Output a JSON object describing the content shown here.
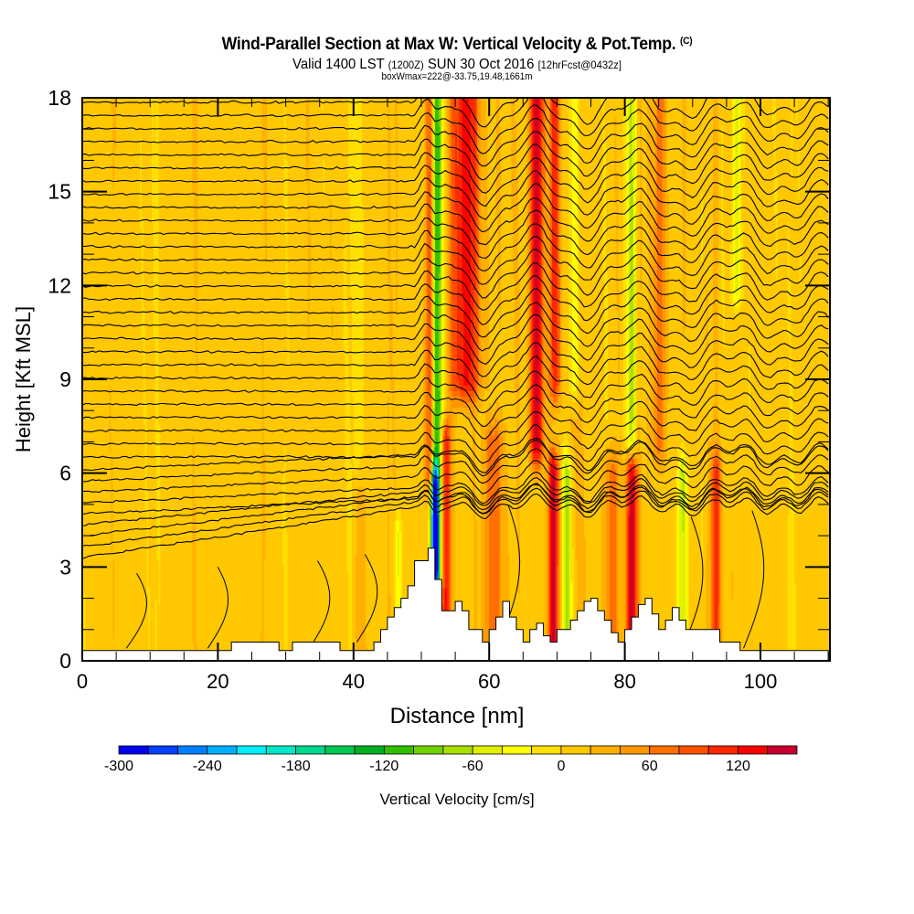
{
  "header": {
    "title": "Wind-Parallel Section at Max W: Vertical Velocity & Pot.Temp.",
    "copyright": "(C)",
    "valid_prefix": "Valid 1400 LST",
    "valid_utc": "(1200Z)",
    "valid_date": "SUN 30 Oct 2016",
    "forecast": "[12hrFcst@0432z]",
    "box_wmax": "boxWmax=222@-33.75,19.48,1661m"
  },
  "chart_data": {
    "type": "heatmap",
    "title": "Wind-Parallel Section at Max W: Vertical Velocity & Pot.Temp.",
    "xlabel": "Distance [nm]",
    "ylabel": "Height [Kft MSL]",
    "xlim": [
      0,
      110
    ],
    "ylim": [
      0,
      18
    ],
    "xticks": [
      0,
      20,
      40,
      60,
      80,
      100
    ],
    "xtick_labels": [
      "0",
      "20",
      "40",
      "60",
      "80",
      "100"
    ],
    "x_minor_step": 5,
    "yticks": [
      0,
      3,
      6,
      9,
      12,
      15,
      18
    ],
    "ytick_labels": [
      "0",
      "3",
      "6",
      "9",
      "12",
      "15",
      "18"
    ],
    "y_minor_step": 1,
    "colorbar": {
      "label": "Vertical Velocity [cm/s]",
      "placement": "bottom",
      "min": -300,
      "max": 160,
      "step": 20,
      "tick_values": [
        -300,
        -240,
        -180,
        -120,
        -60,
        0,
        60,
        120
      ],
      "tick_labels": [
        "-300",
        "-240",
        "-180",
        "-120",
        "-60",
        "0",
        "60",
        "120"
      ],
      "colors": [
        "#0000f0",
        "#0040ff",
        "#0080ff",
        "#00b0ff",
        "#00f0ff",
        "#00e8c8",
        "#00d890",
        "#00c850",
        "#00b020",
        "#30c000",
        "#70d000",
        "#a8e000",
        "#e0f000",
        "#ffff00",
        "#ffe000",
        "#ffc800",
        "#ffb000",
        "#ff9800",
        "#ff7000",
        "#ff5000",
        "#ff2800",
        "#ff0000",
        "#c80030"
      ]
    },
    "velocity_bands": [
      {
        "x": 52.3,
        "w": 0.9,
        "v": -140,
        "z0": 3.0,
        "z1": 18
      },
      {
        "x": 52.0,
        "w": 0.5,
        "v": -280,
        "z0": 2.5,
        "z1": 5.5
      },
      {
        "x": 51.3,
        "w": 0.6,
        "v": 100,
        "z0": 6,
        "z1": 18
      },
      {
        "x": 53.6,
        "w": 0.7,
        "v": 120,
        "z0": 1.5,
        "z1": 7
      },
      {
        "x": 56.5,
        "w": 2.2,
        "v": 120,
        "z0": 9,
        "z1": 18
      },
      {
        "x": 60.5,
        "w": 1.6,
        "v": 60,
        "z0": 0.5,
        "z1": 7
      },
      {
        "x": 67.0,
        "w": 1.0,
        "v": 140,
        "z0": 7,
        "z1": 18
      },
      {
        "x": 69.7,
        "w": 0.8,
        "v": 100,
        "z0": 9,
        "z1": 18
      },
      {
        "x": 69.5,
        "w": 0.8,
        "v": 140,
        "z0": 0.8,
        "z1": 6
      },
      {
        "x": 71.5,
        "w": 0.8,
        "v": -80,
        "z0": 0.8,
        "z1": 6
      },
      {
        "x": 72.5,
        "w": 0.7,
        "v": -60,
        "z0": 9,
        "z1": 18
      },
      {
        "x": 81.0,
        "w": 0.7,
        "v": -80,
        "z0": 7,
        "z1": 18
      },
      {
        "x": 81.0,
        "w": 0.8,
        "v": 140,
        "z0": 1,
        "z1": 6
      },
      {
        "x": 78.0,
        "w": 1.2,
        "v": 60,
        "z0": 0.5,
        "z1": 6
      },
      {
        "x": 88.5,
        "w": 0.7,
        "v": -80,
        "z0": 1,
        "z1": 6
      },
      {
        "x": 96.5,
        "w": 0.7,
        "v": -60,
        "z0": 12,
        "z1": 18
      },
      {
        "x": 93.5,
        "w": 0.8,
        "v": 80,
        "z0": 1,
        "z1": 6
      },
      {
        "x": 85.0,
        "w": 1.0,
        "v": 60,
        "z0": 7,
        "z1": 18
      },
      {
        "x": 46.5,
        "w": 0.5,
        "v": -60,
        "z0": 1.5,
        "z1": 4
      },
      {
        "x": 41.0,
        "w": 0.8,
        "v": 40,
        "z0": 0.5,
        "z1": 5
      }
    ],
    "isentrope_levels_count": 38,
    "terrain_kft": [
      [
        0,
        0.33
      ],
      [
        22,
        0.6
      ],
      [
        29,
        0.33
      ],
      [
        31,
        0.6
      ],
      [
        38,
        0.33
      ],
      [
        43,
        0.6
      ],
      [
        44,
        1.0
      ],
      [
        45,
        1.4
      ],
      [
        46,
        1.7
      ],
      [
        47,
        2.0
      ],
      [
        48,
        2.4
      ],
      [
        49,
        3.2
      ],
      [
        51,
        3.6
      ],
      [
        52,
        2.6
      ],
      [
        53,
        1.6
      ],
      [
        55,
        1.9
      ],
      [
        56,
        1.6
      ],
      [
        57,
        1.0
      ],
      [
        59,
        0.6
      ],
      [
        60,
        1.0
      ],
      [
        61,
        1.4
      ],
      [
        62,
        1.9
      ],
      [
        63,
        1.4
      ],
      [
        64,
        1.0
      ],
      [
        65,
        0.6
      ],
      [
        66,
        1.0
      ],
      [
        67,
        1.2
      ],
      [
        68,
        0.8
      ],
      [
        69,
        0.6
      ],
      [
        70,
        1.0
      ],
      [
        72,
        1.3
      ],
      [
        73,
        1.6
      ],
      [
        74,
        1.9
      ],
      [
        75,
        2.0
      ],
      [
        76,
        1.6
      ],
      [
        77,
        1.3
      ],
      [
        78,
        0.9
      ],
      [
        79,
        0.6
      ],
      [
        80,
        1.0
      ],
      [
        81,
        1.4
      ],
      [
        82,
        1.8
      ],
      [
        83,
        2.0
      ],
      [
        84,
        1.5
      ],
      [
        85,
        1.0
      ],
      [
        86,
        1.3
      ],
      [
        87,
        1.7
      ],
      [
        88,
        1.3
      ],
      [
        89,
        1.0
      ],
      [
        94,
        0.6
      ],
      [
        96,
        0.6
      ],
      [
        97,
        0.33
      ],
      [
        110,
        0.33
      ]
    ]
  }
}
